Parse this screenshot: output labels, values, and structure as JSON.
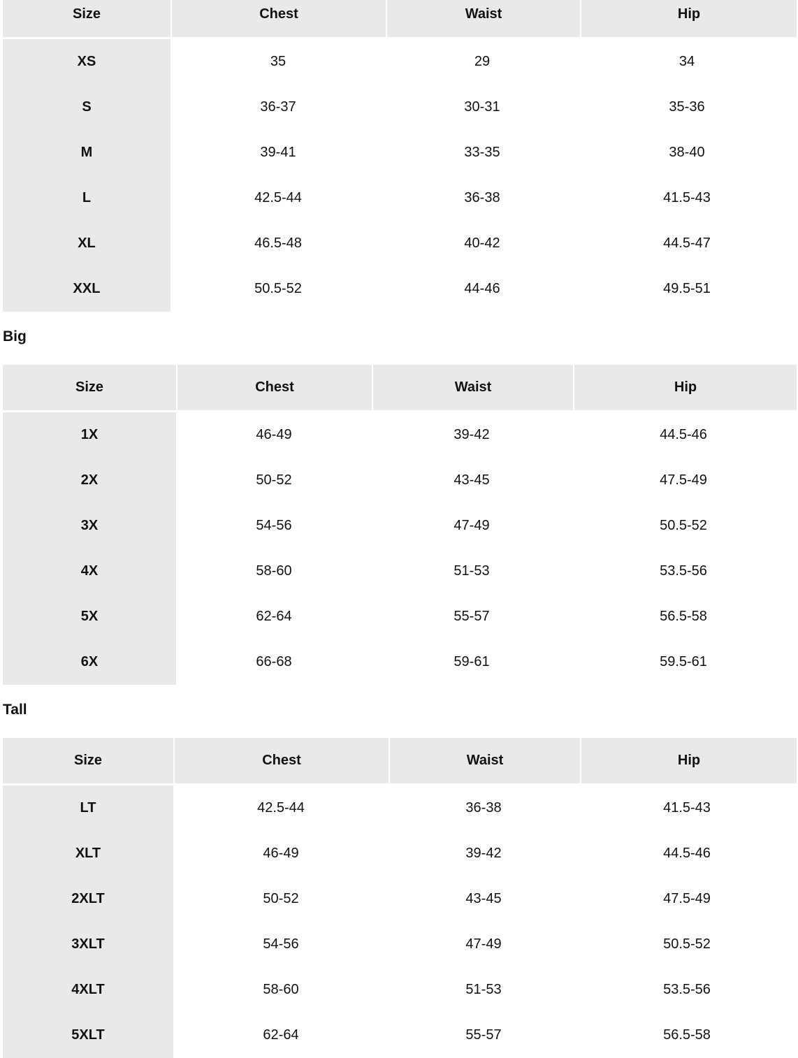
{
  "tables": [
    {
      "title": "",
      "headers": [
        "Size",
        "Chest",
        "Waist",
        "Hip"
      ],
      "rows": [
        [
          "XS",
          "35",
          "29",
          "34"
        ],
        [
          "S",
          "36-37",
          "30-31",
          "35-36"
        ],
        [
          "M",
          "39-41",
          "33-35",
          "38-40"
        ],
        [
          "L",
          "42.5-44",
          "36-38",
          "41.5-43"
        ],
        [
          "XL",
          "46.5-48",
          "40-42",
          "44.5-47"
        ],
        [
          "XXL",
          "50.5-52",
          "44-46",
          "49.5-51"
        ]
      ]
    },
    {
      "title": "Big",
      "headers": [
        "Size",
        "Chest",
        "Waist",
        "Hip"
      ],
      "rows": [
        [
          "1X",
          "46-49",
          "39-42",
          "44.5-46"
        ],
        [
          "2X",
          "50-52",
          "43-45",
          "47.5-49"
        ],
        [
          "3X",
          "54-56",
          "47-49",
          "50.5-52"
        ],
        [
          "4X",
          "58-60",
          "51-53",
          "53.5-56"
        ],
        [
          "5X",
          "62-64",
          "55-57",
          "56.5-58"
        ],
        [
          "6X",
          "66-68",
          "59-61",
          "59.5-61"
        ]
      ]
    },
    {
      "title": "Tall",
      "headers": [
        "Size",
        "Chest",
        "Waist",
        "Hip"
      ],
      "rows": [
        [
          "LT",
          "42.5-44",
          "36-38",
          "41.5-43"
        ],
        [
          "XLT",
          "46-49",
          "39-42",
          "44.5-46"
        ],
        [
          "2XLT",
          "50-52",
          "43-45",
          "47.5-49"
        ],
        [
          "3XLT",
          "54-56",
          "47-49",
          "50.5-52"
        ],
        [
          "4XLT",
          "58-60",
          "51-53",
          "53.5-56"
        ],
        [
          "5XLT",
          "62-64",
          "55-57",
          "56.5-58"
        ]
      ]
    }
  ],
  "colors": {
    "header_bg": "#e8e9eb",
    "text": "#111111"
  }
}
